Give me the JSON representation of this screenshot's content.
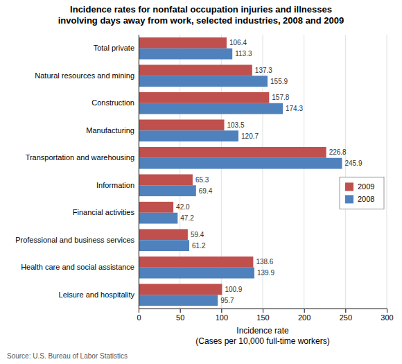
{
  "chart_data": {
    "type": "bar",
    "orientation": "horizontal",
    "title": "Incidence rates for nonfatal occupation injuries and illnesses\ninvolving days away from work, selected industries, 2008 and 2009",
    "xlabel": "Incidence rate\n(Cases per 10,000 full-time workers)",
    "annotations": [
      "Source: U.S. Bureau of Labor Statistics"
    ],
    "categories": [
      "Total private",
      "Natural resources and mining",
      "Construction",
      "Manufacturing",
      "Transportation and warehousing",
      "Information",
      "Financial activities",
      "Professional and business services",
      "Health care and social assistance",
      "Leisure and hospitality"
    ],
    "series": [
      {
        "name": "2009",
        "color": "#C0504D",
        "values": [
          106.4,
          137.3,
          157.8,
          103.5,
          226.8,
          65.3,
          42.0,
          59.4,
          138.6,
          100.9
        ],
        "value_labels": [
          "106.4",
          "137.3",
          "157.8",
          "103.5",
          "226.8",
          "65.3",
          "42.0",
          "59.4",
          "138.6",
          "100.9"
        ]
      },
      {
        "name": "2008",
        "color": "#4F81BD",
        "values": [
          113.3,
          155.9,
          174.3,
          120.7,
          245.9,
          69.4,
          47.2,
          61.2,
          139.9,
          95.7
        ],
        "value_labels": [
          "113.3",
          "155.9",
          "174.3",
          "120.7",
          "245.9",
          "69.4",
          "47.2",
          "61.2",
          "139.9",
          "95.7"
        ]
      }
    ],
    "xlim": [
      0,
      300
    ],
    "xticks": [
      0,
      50,
      100,
      150,
      200,
      250,
      300
    ],
    "grid": true,
    "legend": "right",
    "data_labels": true
  }
}
